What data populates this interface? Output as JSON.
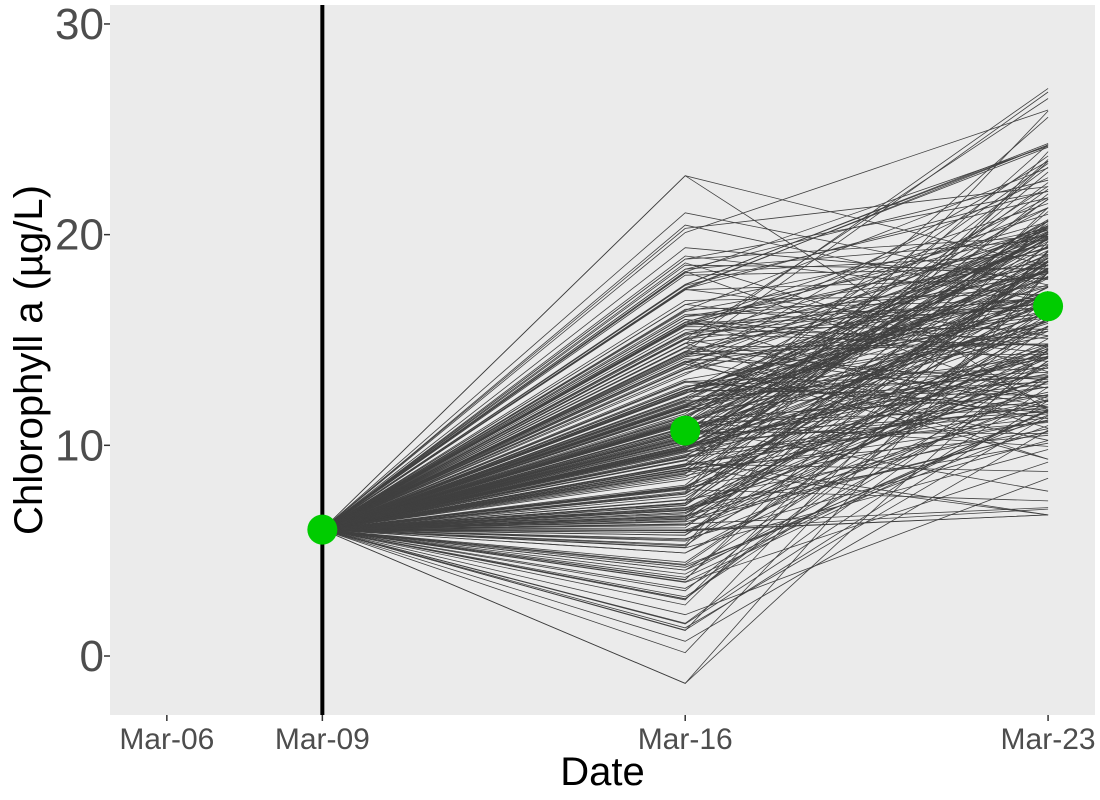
{
  "chart_data": {
    "type": "line",
    "title": "",
    "xlabel": "Date",
    "ylabel": "Chlorophyll a (µg/L)",
    "x_ticks": [
      "Mar-06",
      "Mar-09",
      "Mar-16",
      "Mar-23"
    ],
    "x_dates": [
      "Mar-09",
      "Mar-16",
      "Mar-23"
    ],
    "xlim": [
      "Mar-05",
      "Mar-23"
    ],
    "y_ticks": [
      0,
      10,
      20,
      30
    ],
    "ylim": [
      -2.8,
      30.9
    ],
    "grid": false,
    "legend": "none",
    "vertical_line": {
      "date": "Mar-09"
    },
    "observations": {
      "dates": [
        "Mar-09",
        "Mar-16",
        "Mar-23"
      ],
      "values": [
        6.0,
        10.7,
        16.6
      ]
    },
    "ensemble": {
      "members": 300,
      "start_value": 6.0,
      "mar16_range": [
        -1.3,
        22.8
      ],
      "mar23_range": [
        6.7,
        29.3
      ]
    },
    "colors": {
      "panel": "#ebebeb",
      "ensemble_line": "#404040",
      "observation": "#00cc00",
      "vline": "#000000",
      "tick_text": "#4d4d4d",
      "axis_title": "#000000"
    }
  }
}
